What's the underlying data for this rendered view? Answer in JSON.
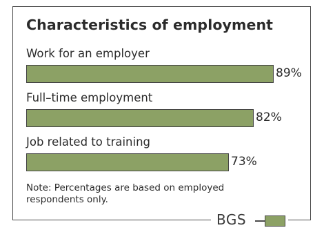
{
  "chart_data": {
    "type": "bar",
    "orientation": "horizontal",
    "title": "Characteristics of employment",
    "categories": [
      "Work for an employer",
      "Full–time employment",
      "Job related to training"
    ],
    "values": [
      89,
      82,
      73
    ],
    "value_labels": [
      "89%",
      "82%",
      "73%"
    ],
    "xlim": [
      0,
      100
    ],
    "grid": false,
    "note": "Note: Percentages are based on employed respondents only."
  },
  "logo": {
    "text": "BGS"
  },
  "colors": {
    "bar": "#8ca165",
    "outline": "#444444"
  }
}
